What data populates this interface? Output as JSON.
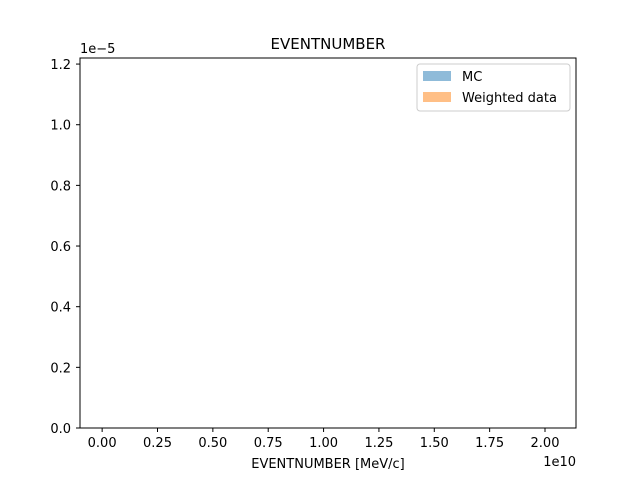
{
  "chart_data": {
    "type": "bar",
    "title": "EVENTNUMBER",
    "xlabel": "EVENTNUMBER [MeV/c]",
    "ylabel": "",
    "x_offset_label": "1e10",
    "y_offset_label": "1e−5",
    "xlim": [
      -0.1,
      2.14
    ],
    "ylim": [
      0,
      1.22
    ],
    "xticks": [
      0.0,
      0.25,
      0.5,
      0.75,
      1.0,
      1.25,
      1.5,
      1.75,
      2.0
    ],
    "xtick_labels": [
      "0.00",
      "0.25",
      "0.50",
      "0.75",
      "1.00",
      "1.25",
      "1.50",
      "1.75",
      "2.00"
    ],
    "yticks": [
      0.0,
      0.2,
      0.4,
      0.6,
      0.8,
      1.0,
      1.2
    ],
    "ytick_labels": [
      "0.0",
      "0.2",
      "0.4",
      "0.6",
      "0.8",
      "1.0",
      "1.2"
    ],
    "grid": false,
    "legend_position": "top-right",
    "series": [
      {
        "name": "MC",
        "color": "#8fbbd9",
        "values": []
      },
      {
        "name": "Weighted data",
        "color": "#ffbf86",
        "values": []
      }
    ]
  }
}
